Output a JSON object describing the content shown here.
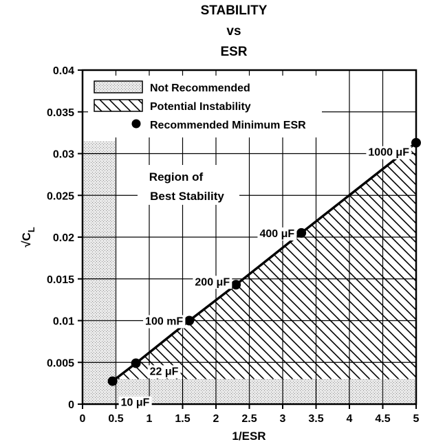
{
  "chart_data": {
    "type": "scatter",
    "title": [
      "STABILITY",
      "vs",
      "ESR"
    ],
    "xlabel": "1/ESR",
    "ylabel": "√C",
    "ylabel_sub": "L",
    "xlim": [
      0,
      5
    ],
    "ylim": [
      0,
      0.04
    ],
    "x_ticks": [
      "0",
      "0.5",
      "1",
      "1.5",
      "2",
      "2.5",
      "3",
      "3.5",
      "4",
      "4.5",
      "5"
    ],
    "y_ticks": [
      "0",
      "0.005",
      "0.01",
      "0.015",
      "0.02",
      "0.025",
      "0.03",
      "0.035",
      "0.04"
    ],
    "legend": {
      "placement": "top-left",
      "entries": [
        {
          "label": "Not Recommended",
          "style": "stipple"
        },
        {
          "label": "Potential Instability",
          "style": "hatch"
        },
        {
          "label": "Recommended Minimum ESR",
          "style": "dot"
        }
      ]
    },
    "series": [
      {
        "name": "Recommended Minimum ESR",
        "points": [
          {
            "x": 0.45,
            "y": 0.00275,
            "label": "10 μF"
          },
          {
            "x": 0.8,
            "y": 0.0049,
            "label": "22 μF"
          },
          {
            "x": 1.6,
            "y": 0.01,
            "label": "100 mF"
          },
          {
            "x": 2.3,
            "y": 0.0143,
            "label": "200 μF"
          },
          {
            "x": 3.28,
            "y": 0.0205,
            "label": "400 μF"
          },
          {
            "x": 5.0,
            "y": 0.0313,
            "label": "1000 μF"
          }
        ]
      }
    ],
    "not_recommended": {
      "x_below": 0.5,
      "y_below": 0.003
    },
    "region_label": [
      "Region of",
      "Best Stability"
    ]
  }
}
